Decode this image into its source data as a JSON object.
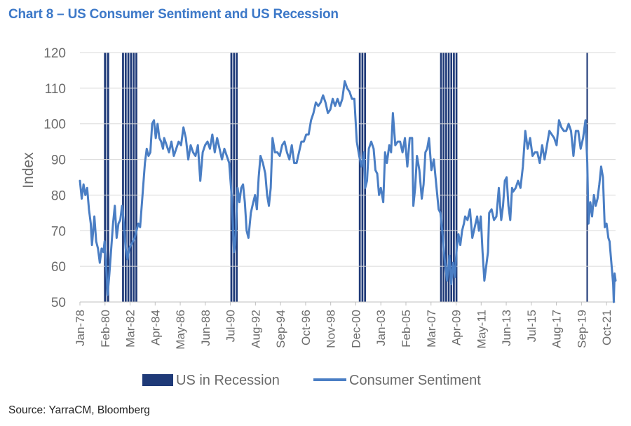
{
  "title": "Chart 8 – US Consumer Sentiment and US Recession",
  "source": "Source: YarraCM, Bloomberg",
  "colors": {
    "title": "#3C78C8",
    "sentiment": "#4A7EC4",
    "recession": "#1F3A78",
    "grid": "#d9d9d9",
    "text": "#6b6b6b"
  },
  "chart_data": {
    "type": "line",
    "ylabel": "Index",
    "ylim": [
      50,
      120
    ],
    "yticks": [
      50,
      60,
      70,
      80,
      90,
      100,
      110,
      120
    ],
    "xlim": [
      1978.0,
      2022.5
    ],
    "xtick_labels": [
      "Jan-78",
      "Feb-80",
      "Mar-82",
      "Apr-84",
      "May-86",
      "Jun-88",
      "Jul-90",
      "Aug-92",
      "Sep-94",
      "Oct-96",
      "Nov-98",
      "Dec-00",
      "Jan-03",
      "Feb-05",
      "Mar-07",
      "Apr-09",
      "May-11",
      "Jun-13",
      "Jul-15",
      "Aug-17",
      "Sep-19",
      "Oct-21"
    ],
    "xtick_values": [
      1978.0,
      1980.083,
      1982.167,
      1984.25,
      1986.333,
      1988.417,
      1990.5,
      1992.583,
      1994.667,
      1996.75,
      1998.833,
      2000.917,
      2003.0,
      2005.083,
      2007.167,
      2009.25,
      2011.333,
      2013.417,
      2015.5,
      2017.583,
      2019.667,
      2021.75
    ],
    "grid": true,
    "legend_position": "bottom",
    "series": [
      {
        "name": "US in Recession",
        "type": "recession-bars",
        "periods": [
          [
            1980.0,
            1980.5
          ],
          [
            1981.5,
            1982.83
          ],
          [
            1990.5,
            1991.17
          ],
          [
            2001.17,
            2001.83
          ],
          [
            2007.92,
            2009.42
          ],
          [
            2020.08,
            2020.25
          ]
        ]
      },
      {
        "name": "Consumer Sentiment",
        "type": "line",
        "points": [
          [
            1978.0,
            84
          ],
          [
            1978.15,
            79
          ],
          [
            1978.3,
            83
          ],
          [
            1978.45,
            80
          ],
          [
            1978.6,
            82
          ],
          [
            1978.75,
            76
          ],
          [
            1978.9,
            72
          ],
          [
            1979.0,
            66
          ],
          [
            1979.2,
            74
          ],
          [
            1979.35,
            67
          ],
          [
            1979.5,
            65
          ],
          [
            1979.65,
            61
          ],
          [
            1979.8,
            65
          ],
          [
            1979.95,
            64
          ],
          [
            1980.05,
            67
          ],
          [
            1980.15,
            62
          ],
          [
            1980.3,
            52
          ],
          [
            1980.45,
            58
          ],
          [
            1980.6,
            65
          ],
          [
            1980.75,
            72
          ],
          [
            1980.9,
            77
          ],
          [
            1981.05,
            68
          ],
          [
            1981.2,
            72
          ],
          [
            1981.35,
            73
          ],
          [
            1981.5,
            77
          ],
          [
            1981.65,
            72
          ],
          [
            1981.8,
            65
          ],
          [
            1981.95,
            62
          ],
          [
            1982.1,
            65
          ],
          [
            1982.25,
            66
          ],
          [
            1982.4,
            67
          ],
          [
            1982.55,
            68
          ],
          [
            1982.7,
            70
          ],
          [
            1982.85,
            72
          ],
          [
            1983.0,
            71
          ],
          [
            1983.2,
            80
          ],
          [
            1983.4,
            89
          ],
          [
            1983.55,
            93
          ],
          [
            1983.7,
            91
          ],
          [
            1983.85,
            92
          ],
          [
            1984.0,
            100
          ],
          [
            1984.15,
            101
          ],
          [
            1984.3,
            96
          ],
          [
            1984.45,
            100
          ],
          [
            1984.6,
            96
          ],
          [
            1984.75,
            95
          ],
          [
            1984.9,
            93
          ],
          [
            1985.0,
            96
          ],
          [
            1985.2,
            94
          ],
          [
            1985.4,
            92
          ],
          [
            1985.6,
            95
          ],
          [
            1985.8,
            91
          ],
          [
            1986.0,
            93
          ],
          [
            1986.2,
            95
          ],
          [
            1986.4,
            94
          ],
          [
            1986.6,
            99
          ],
          [
            1986.8,
            96
          ],
          [
            1987.0,
            90
          ],
          [
            1987.2,
            94
          ],
          [
            1987.4,
            92
          ],
          [
            1987.6,
            91
          ],
          [
            1987.8,
            94
          ],
          [
            1988.0,
            84
          ],
          [
            1988.2,
            92
          ],
          [
            1988.4,
            94
          ],
          [
            1988.6,
            95
          ],
          [
            1988.8,
            93
          ],
          [
            1989.0,
            97
          ],
          [
            1989.2,
            92
          ],
          [
            1989.4,
            96
          ],
          [
            1989.6,
            93
          ],
          [
            1989.8,
            90
          ],
          [
            1990.0,
            93
          ],
          [
            1990.2,
            91
          ],
          [
            1990.4,
            89
          ],
          [
            1990.6,
            80
          ],
          [
            1990.7,
            72
          ],
          [
            1990.8,
            64
          ],
          [
            1990.9,
            66
          ],
          [
            1991.0,
            74
          ],
          [
            1991.1,
            82
          ],
          [
            1991.25,
            78
          ],
          [
            1991.4,
            82
          ],
          [
            1991.55,
            83
          ],
          [
            1991.7,
            78
          ],
          [
            1991.85,
            70
          ],
          [
            1992.0,
            68
          ],
          [
            1992.2,
            75
          ],
          [
            1992.4,
            78
          ],
          [
            1992.55,
            80
          ],
          [
            1992.7,
            76
          ],
          [
            1992.85,
            85
          ],
          [
            1993.0,
            91
          ],
          [
            1993.2,
            89
          ],
          [
            1993.4,
            86
          ],
          [
            1993.55,
            80
          ],
          [
            1993.7,
            77
          ],
          [
            1993.85,
            82
          ],
          [
            1994.0,
            96
          ],
          [
            1994.2,
            92
          ],
          [
            1994.4,
            92
          ],
          [
            1994.6,
            91
          ],
          [
            1994.8,
            94
          ],
          [
            1995.0,
            95
          ],
          [
            1995.2,
            92
          ],
          [
            1995.4,
            90
          ],
          [
            1995.6,
            94
          ],
          [
            1995.8,
            89
          ],
          [
            1996.0,
            89
          ],
          [
            1996.2,
            92
          ],
          [
            1996.4,
            95
          ],
          [
            1996.6,
            95
          ],
          [
            1996.8,
            97
          ],
          [
            1997.0,
            97
          ],
          [
            1997.2,
            101
          ],
          [
            1997.4,
            103
          ],
          [
            1997.6,
            106
          ],
          [
            1997.8,
            105
          ],
          [
            1998.0,
            106
          ],
          [
            1998.2,
            108
          ],
          [
            1998.4,
            106
          ],
          [
            1998.6,
            103
          ],
          [
            1998.8,
            104
          ],
          [
            1999.0,
            107
          ],
          [
            1999.2,
            105
          ],
          [
            1999.4,
            107
          ],
          [
            1999.6,
            105
          ],
          [
            1999.8,
            107
          ],
          [
            2000.0,
            112
          ],
          [
            2000.2,
            110
          ],
          [
            2000.4,
            109
          ],
          [
            2000.6,
            107
          ],
          [
            2000.8,
            107
          ],
          [
            2001.0,
            95
          ],
          [
            2001.2,
            91
          ],
          [
            2001.4,
            88
          ],
          [
            2001.6,
            92
          ],
          [
            2001.7,
            82
          ],
          [
            2001.85,
            84
          ],
          [
            2002.0,
            93
          ],
          [
            2002.2,
            95
          ],
          [
            2002.4,
            93
          ],
          [
            2002.55,
            87
          ],
          [
            2002.7,
            86
          ],
          [
            2002.85,
            80
          ],
          [
            2003.0,
            82
          ],
          [
            2003.2,
            78
          ],
          [
            2003.35,
            92
          ],
          [
            2003.5,
            89
          ],
          [
            2003.7,
            94
          ],
          [
            2003.85,
            92
          ],
          [
            2004.0,
            103
          ],
          [
            2004.2,
            94
          ],
          [
            2004.4,
            95
          ],
          [
            2004.6,
            95
          ],
          [
            2004.8,
            92
          ],
          [
            2005.0,
            96
          ],
          [
            2005.2,
            88
          ],
          [
            2005.4,
            96
          ],
          [
            2005.6,
            96
          ],
          [
            2005.7,
            77
          ],
          [
            2005.85,
            82
          ],
          [
            2006.0,
            91
          ],
          [
            2006.2,
            87
          ],
          [
            2006.4,
            79
          ],
          [
            2006.55,
            83
          ],
          [
            2006.7,
            92
          ],
          [
            2006.85,
            93
          ],
          [
            2007.0,
            96
          ],
          [
            2007.2,
            87
          ],
          [
            2007.4,
            90
          ],
          [
            2007.6,
            83
          ],
          [
            2007.8,
            76
          ],
          [
            2007.95,
            75
          ],
          [
            2008.1,
            70
          ],
          [
            2008.3,
            62
          ],
          [
            2008.5,
            56
          ],
          [
            2008.7,
            63
          ],
          [
            2008.85,
            55
          ],
          [
            2009.0,
            61
          ],
          [
            2009.15,
            57
          ],
          [
            2009.3,
            65
          ],
          [
            2009.45,
            69
          ],
          [
            2009.6,
            66
          ],
          [
            2009.75,
            70
          ],
          [
            2009.9,
            72
          ],
          [
            2010.0,
            74
          ],
          [
            2010.2,
            73
          ],
          [
            2010.4,
            76
          ],
          [
            2010.6,
            68
          ],
          [
            2010.8,
            71
          ],
          [
            2011.0,
            74
          ],
          [
            2011.15,
            70
          ],
          [
            2011.3,
            74
          ],
          [
            2011.45,
            64
          ],
          [
            2011.6,
            56
          ],
          [
            2011.75,
            60
          ],
          [
            2011.9,
            64
          ],
          [
            2012.0,
            75
          ],
          [
            2012.2,
            76
          ],
          [
            2012.4,
            73
          ],
          [
            2012.6,
            74
          ],
          [
            2012.8,
            82
          ],
          [
            2013.0,
            73
          ],
          [
            2013.15,
            77
          ],
          [
            2013.3,
            84
          ],
          [
            2013.45,
            85
          ],
          [
            2013.6,
            77
          ],
          [
            2013.75,
            73
          ],
          [
            2013.9,
            82
          ],
          [
            2014.0,
            81
          ],
          [
            2014.2,
            82
          ],
          [
            2014.4,
            84
          ],
          [
            2014.6,
            82
          ],
          [
            2014.8,
            88
          ],
          [
            2015.0,
            98
          ],
          [
            2015.2,
            93
          ],
          [
            2015.4,
            96
          ],
          [
            2015.6,
            91
          ],
          [
            2015.8,
            92
          ],
          [
            2016.0,
            92
          ],
          [
            2016.2,
            89
          ],
          [
            2016.4,
            94
          ],
          [
            2016.6,
            90
          ],
          [
            2016.8,
            94
          ],
          [
            2017.0,
            98
          ],
          [
            2017.2,
            97
          ],
          [
            2017.4,
            96
          ],
          [
            2017.6,
            94
          ],
          [
            2017.8,
            101
          ],
          [
            2018.0,
            99
          ],
          [
            2018.2,
            98
          ],
          [
            2018.4,
            98
          ],
          [
            2018.6,
            100
          ],
          [
            2018.8,
            98
          ],
          [
            2019.0,
            91
          ],
          [
            2019.2,
            98
          ],
          [
            2019.4,
            98
          ],
          [
            2019.6,
            93
          ],
          [
            2019.8,
            96
          ],
          [
            2020.0,
            101
          ],
          [
            2020.15,
            89
          ],
          [
            2020.25,
            72
          ],
          [
            2020.4,
            78
          ],
          [
            2020.55,
            74
          ],
          [
            2020.7,
            80
          ],
          [
            2020.85,
            77
          ],
          [
            2021.0,
            79
          ],
          [
            2021.15,
            83
          ],
          [
            2021.3,
            88
          ],
          [
            2021.45,
            85
          ],
          [
            2021.6,
            71
          ],
          [
            2021.75,
            72
          ],
          [
            2021.9,
            68
          ],
          [
            2022.0,
            67
          ],
          [
            2022.1,
            63
          ],
          [
            2022.2,
            59
          ],
          [
            2022.3,
            55
          ],
          [
            2022.35,
            50
          ],
          [
            2022.42,
            58
          ],
          [
            2022.5,
            56
          ]
        ]
      }
    ]
  }
}
